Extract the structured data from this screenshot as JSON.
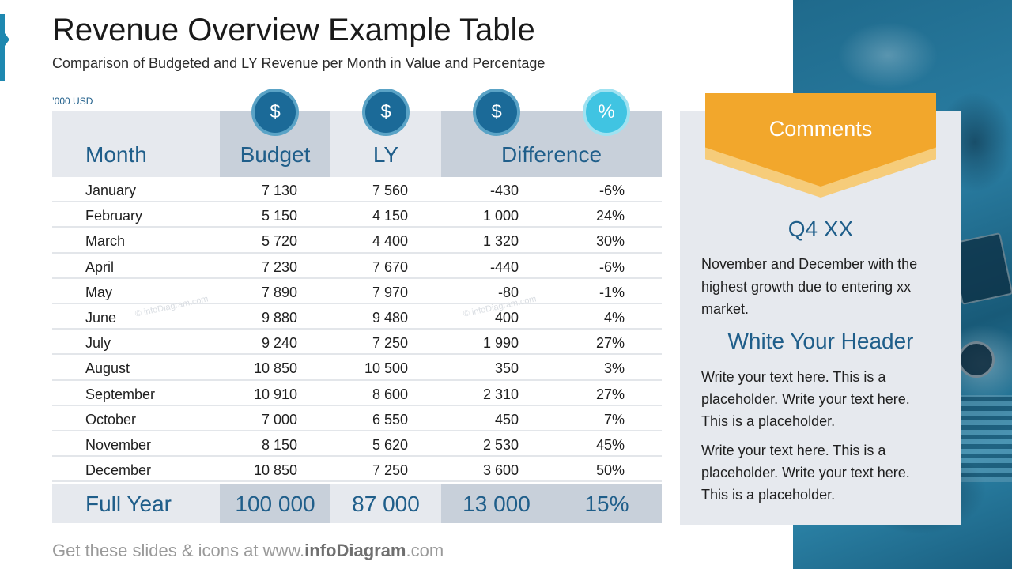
{
  "slide": {
    "title": "Revenue Overview Example Table",
    "subtitle": "Comparison of Budgeted and LY Revenue per Month in Value and Percentage",
    "unit": "’000 USD"
  },
  "table": {
    "headers": {
      "month": "Month",
      "budget": "Budget",
      "ly": "LY",
      "difference": "Difference"
    },
    "badges": {
      "budget": "$",
      "ly": "$",
      "diff_value": "$",
      "diff_pct": "%"
    },
    "rows": [
      {
        "month": "January",
        "budget": "7 130",
        "ly": "7 560",
        "diff": "-430",
        "pct": "-6%"
      },
      {
        "month": "February",
        "budget": "5 150",
        "ly": "4 150",
        "diff": "1 000",
        "pct": "24%"
      },
      {
        "month": "March",
        "budget": "5 720",
        "ly": "4 400",
        "diff": "1 320",
        "pct": "30%"
      },
      {
        "month": "April",
        "budget": "7 230",
        "ly": "7 670",
        "diff": "-440",
        "pct": "-6%"
      },
      {
        "month": "May",
        "budget": "7 890",
        "ly": "7 970",
        "diff": "-80",
        "pct": "-1%"
      },
      {
        "month": "June",
        "budget": "9 880",
        "ly": "9 480",
        "diff": "400",
        "pct": "4%"
      },
      {
        "month": "July",
        "budget": "9 240",
        "ly": "7 250",
        "diff": "1 990",
        "pct": "27%"
      },
      {
        "month": "August",
        "budget": "10 850",
        "ly": "10 500",
        "diff": "350",
        "pct": "3%"
      },
      {
        "month": "September",
        "budget": "10 910",
        "ly": "8 600",
        "diff": "2 310",
        "pct": "27%"
      },
      {
        "month": "October",
        "budget": "7 000",
        "ly": "6 550",
        "diff": "450",
        "pct": "7%"
      },
      {
        "month": "November",
        "budget": "8 150",
        "ly": "5 620",
        "diff": "2 530",
        "pct": "45%"
      },
      {
        "month": "December",
        "budget": "10 850",
        "ly": "7 250",
        "diff": "3 600",
        "pct": "50%"
      }
    ],
    "total": {
      "label": "Full Year",
      "budget": "100 000",
      "ly": "87 000",
      "diff": "13 000",
      "pct": "15%"
    }
  },
  "comments": {
    "ribbon_label": "Comments",
    "q_header": "Q4 XX",
    "q_text": "November and December with the highest growth due to entering xx market.",
    "section_header": "White Your Header",
    "paragraph1": "Write your text here. This is a placeholder.  Write your text here. This is a placeholder.",
    "paragraph2": "Write your text here. This is a placeholder.  Write your text here. This is a placeholder."
  },
  "footer": {
    "prefix": "Get these slides & icons at www.",
    "brand": "infoDiagram",
    "suffix": ".com"
  },
  "watermark": "© infoDiagram.com",
  "colors": {
    "accent_blue": "#1f5e8a",
    "badge_blue": "#1b6a98",
    "badge_cyan": "#40c4e2",
    "ribbon_orange": "#f2a72c",
    "header_gray": "#c8d0da"
  }
}
